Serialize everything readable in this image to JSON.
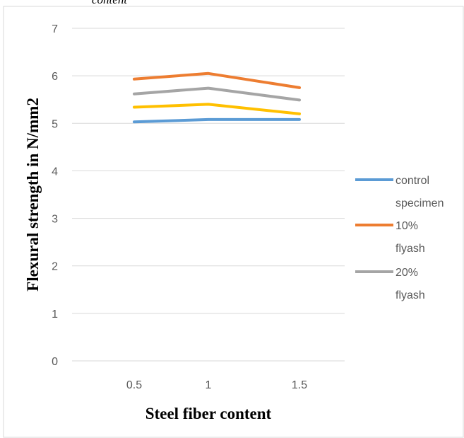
{
  "top_fragment": "content",
  "chart_data": {
    "type": "line",
    "x": [
      0.5,
      1,
      1.5
    ],
    "categories": [
      "0.5",
      "1",
      "1.5"
    ],
    "xlabel": "Steel fiber content",
    "ylabel": "Flexural strength in N/mm2",
    "ylim": [
      0,
      7
    ],
    "yticks": [
      "0",
      "1",
      "2",
      "3",
      "4",
      "5",
      "6",
      "7"
    ],
    "grid": true,
    "legend_position": "right",
    "series": [
      {
        "name": "control specimen",
        "name_lines": [
          "control",
          "specimen"
        ],
        "color": "#5b9bd5",
        "values": [
          5.03,
          5.08,
          5.08
        ],
        "legend_shown": true
      },
      {
        "name": "10% flyash",
        "name_lines": [
          "10%",
          "flyash"
        ],
        "color": "#ed7d31",
        "values": [
          5.93,
          6.05,
          5.75
        ],
        "legend_shown": true
      },
      {
        "name": "20% flyash",
        "name_lines": [
          "20%",
          "flyash"
        ],
        "color": "#a5a5a5",
        "values": [
          5.62,
          5.74,
          5.49
        ],
        "legend_shown": true
      },
      {
        "name": "",
        "name_lines": [],
        "color": "#ffc000",
        "values": [
          5.34,
          5.4,
          5.2
        ],
        "legend_shown": false
      }
    ]
  }
}
